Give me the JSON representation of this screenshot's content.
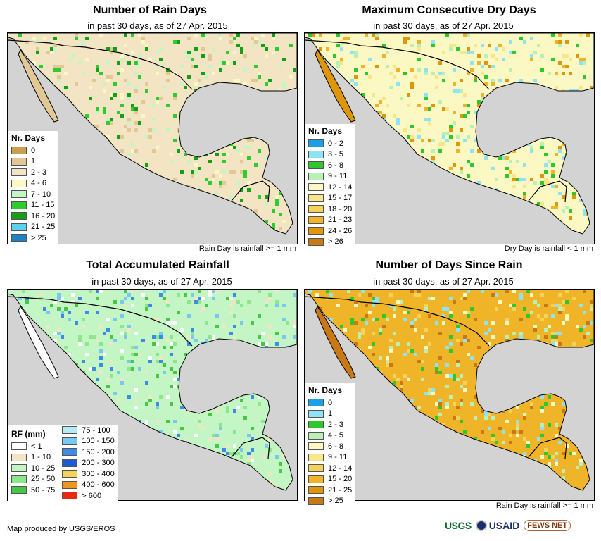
{
  "panels": [
    {
      "title": "Number of Rain Days",
      "subtitle": "in past 30 days, as of 27 Apr. 2015",
      "legend_title": "Nr. Days",
      "legend": [
        {
          "label": "0",
          "color": "#c8a050"
        },
        {
          "label": "1",
          "color": "#e1c896"
        },
        {
          "label": "2 - 3",
          "color": "#f3e4c4"
        },
        {
          "label": "4 - 6",
          "color": "#fbf8c3"
        },
        {
          "label": "7 - 10",
          "color": "#c4f5c4"
        },
        {
          "label": "11 - 15",
          "color": "#2ecc2e"
        },
        {
          "label": "16 - 20",
          "color": "#14a014"
        },
        {
          "label": "21 - 25",
          "color": "#5ad2f0"
        },
        {
          "label": "> 25",
          "color": "#1b82c8"
        }
      ],
      "note": "Rain Day is rainfall >= 1 mm",
      "fill": {
        "land": "#f3e4c4",
        "wet": "#2ecc2e",
        "dry": "#e1c896",
        "ocean": "#d3d3d3"
      }
    },
    {
      "title": "Maximum Consecutive Dry Days",
      "subtitle": "in past 30 days, as of 27 Apr. 2015",
      "legend_title": "Nr. Days",
      "legend": [
        {
          "label": "0 - 2",
          "color": "#1aa0e6"
        },
        {
          "label": "3 - 5",
          "color": "#8ee3f5"
        },
        {
          "label": "6 - 8",
          "color": "#2ec82e"
        },
        {
          "label": "9 - 11",
          "color": "#b8f0b8"
        },
        {
          "label": "12 - 14",
          "color": "#fbf8c3"
        },
        {
          "label": "15 - 17",
          "color": "#f7e68a"
        },
        {
          "label": "18 - 20",
          "color": "#f5d25a"
        },
        {
          "label": "21 - 23",
          "color": "#f0b428"
        },
        {
          "label": "24 - 26",
          "color": "#e0960a"
        },
        {
          "label": "> 26",
          "color": "#c87814"
        }
      ],
      "note": "Dry Day is rainfall < 1 mm",
      "fill": {
        "land": "#fbf8c3",
        "wet": "#2ec82e",
        "dry": "#e0960a",
        "ocean": "#d3d3d3"
      }
    },
    {
      "title": "Total Accumulated Rainfall",
      "subtitle": "in past 30 days, as of 27 Apr. 2015",
      "legend_title": "RF (mm)",
      "legend": [
        {
          "label": "< 1",
          "color": "#ffffff"
        },
        {
          "label": "1 - 10",
          "color": "#f3e4c4"
        },
        {
          "label": "10 - 25",
          "color": "#c4f5c4"
        },
        {
          "label": "25 - 50",
          "color": "#8ce68c"
        },
        {
          "label": "50 - 75",
          "color": "#46c846"
        }
      ],
      "legend2": [
        {
          "label": "75 - 100",
          "color": "#b4ebf5"
        },
        {
          "label": "100 - 150",
          "color": "#78c8f0"
        },
        {
          "label": "150 - 200",
          "color": "#3c8ce6"
        },
        {
          "label": "200 - 300",
          "color": "#1e5ad2"
        },
        {
          "label": "300 - 400",
          "color": "#f5d25a"
        },
        {
          "label": "400 - 600",
          "color": "#f0961e"
        },
        {
          "label": "> 600",
          "color": "#e62814"
        }
      ],
      "fill": {
        "land": "#c4f5c4",
        "wet": "#3c8ce6",
        "dry": "#ffffff",
        "ocean": "#d3d3d3"
      }
    },
    {
      "title": "Number of Days Since Rain",
      "subtitle": "in past 30 days, as of 27 Apr. 2015",
      "legend_title": "Nr. Days",
      "legend": [
        {
          "label": "0",
          "color": "#1aa0e6"
        },
        {
          "label": "1",
          "color": "#8ee3f5"
        },
        {
          "label": "2 - 3",
          "color": "#2ec82e"
        },
        {
          "label": "4 - 5",
          "color": "#b8f0b8"
        },
        {
          "label": "6 - 8",
          "color": "#fbf8c3"
        },
        {
          "label": "9 - 11",
          "color": "#f7e68a"
        },
        {
          "label": "12 - 14",
          "color": "#f5d25a"
        },
        {
          "label": "15 - 20",
          "color": "#f0b428"
        },
        {
          "label": "21 - 25",
          "color": "#e0960a"
        },
        {
          "label": "> 25",
          "color": "#c87814"
        }
      ],
      "note": "Rain Day is rainfall >= 1 mm",
      "fill": {
        "land": "#f0b428",
        "wet": "#2ec82e",
        "dry": "#c87814",
        "ocean": "#d3d3d3"
      }
    }
  ],
  "footer": "Map produced by USGS/EROS",
  "logos": {
    "usgs": "USGS",
    "usaid": "USAID",
    "fews": "FEWS NET"
  }
}
